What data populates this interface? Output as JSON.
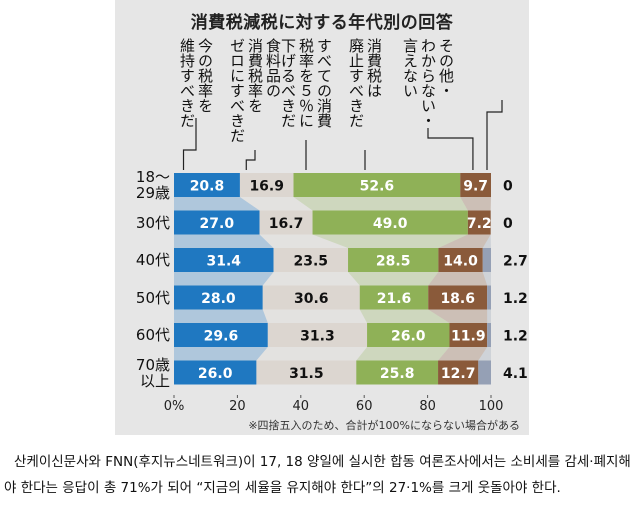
{
  "chart_data": {
    "type": "bar",
    "orientation": "horizontal",
    "stacked": true,
    "title": "消費税減税に対する年代別の回答",
    "categories": [
      "18〜\n29歳",
      "30代",
      "40代",
      "50代",
      "60代",
      "70歳\n以上"
    ],
    "series": [
      {
        "name": "今の税率を\n維持すべきだ",
        "values": [
          20.8,
          27.0,
          31.4,
          28.0,
          29.6,
          26.0
        ],
        "color": "#1f78c1",
        "text_color": "#ffffff"
      },
      {
        "name": "食料品の\n消費税率を\nゼロにすべきだ",
        "values": [
          16.9,
          16.7,
          23.5,
          30.6,
          31.3,
          31.5
        ],
        "color": "#dcd6d0",
        "text_color": "#111111"
      },
      {
        "name": "すべての消費\n税率を５％に\n下げるべきだ",
        "values": [
          52.6,
          49.0,
          28.5,
          21.6,
          26.0,
          25.8
        ],
        "color": "#8fb157",
        "text_color": "#ffffff"
      },
      {
        "name": "消費税は\n廃止すべきだ",
        "values": [
          9.7,
          7.2,
          14.0,
          18.6,
          11.9,
          12.7
        ],
        "color": "#8a5a3a",
        "text_color": "#ffffff"
      },
      {
        "name": "その他・\nわからない・\n言えない",
        "values": [
          0,
          0,
          2.7,
          1.2,
          1.2,
          4.1
        ],
        "color": "#95a0b5",
        "text_color": "#111111"
      }
    ],
    "other_labels": [
      "0",
      "0",
      "2.7",
      "1.2",
      "1.2",
      "4.1"
    ],
    "xlim": [
      0,
      100
    ],
    "xticks": [
      0,
      20,
      40,
      60,
      80,
      100
    ],
    "tick_suffix": "%",
    "note": "※四捨五入のため、合計が100%にならない場合がある"
  },
  "caption": "산케이신문사와 FNN(후지뉴스네트워크)이 17, 18 양일에 실시한 합동 여론조사에서는 소비세를 감세·폐지해야 한다는 응답이 총 71%가 되어 “지금의 세율을 유지해야 한다”의 27·1%를 크게 웃돌아야 한다."
}
